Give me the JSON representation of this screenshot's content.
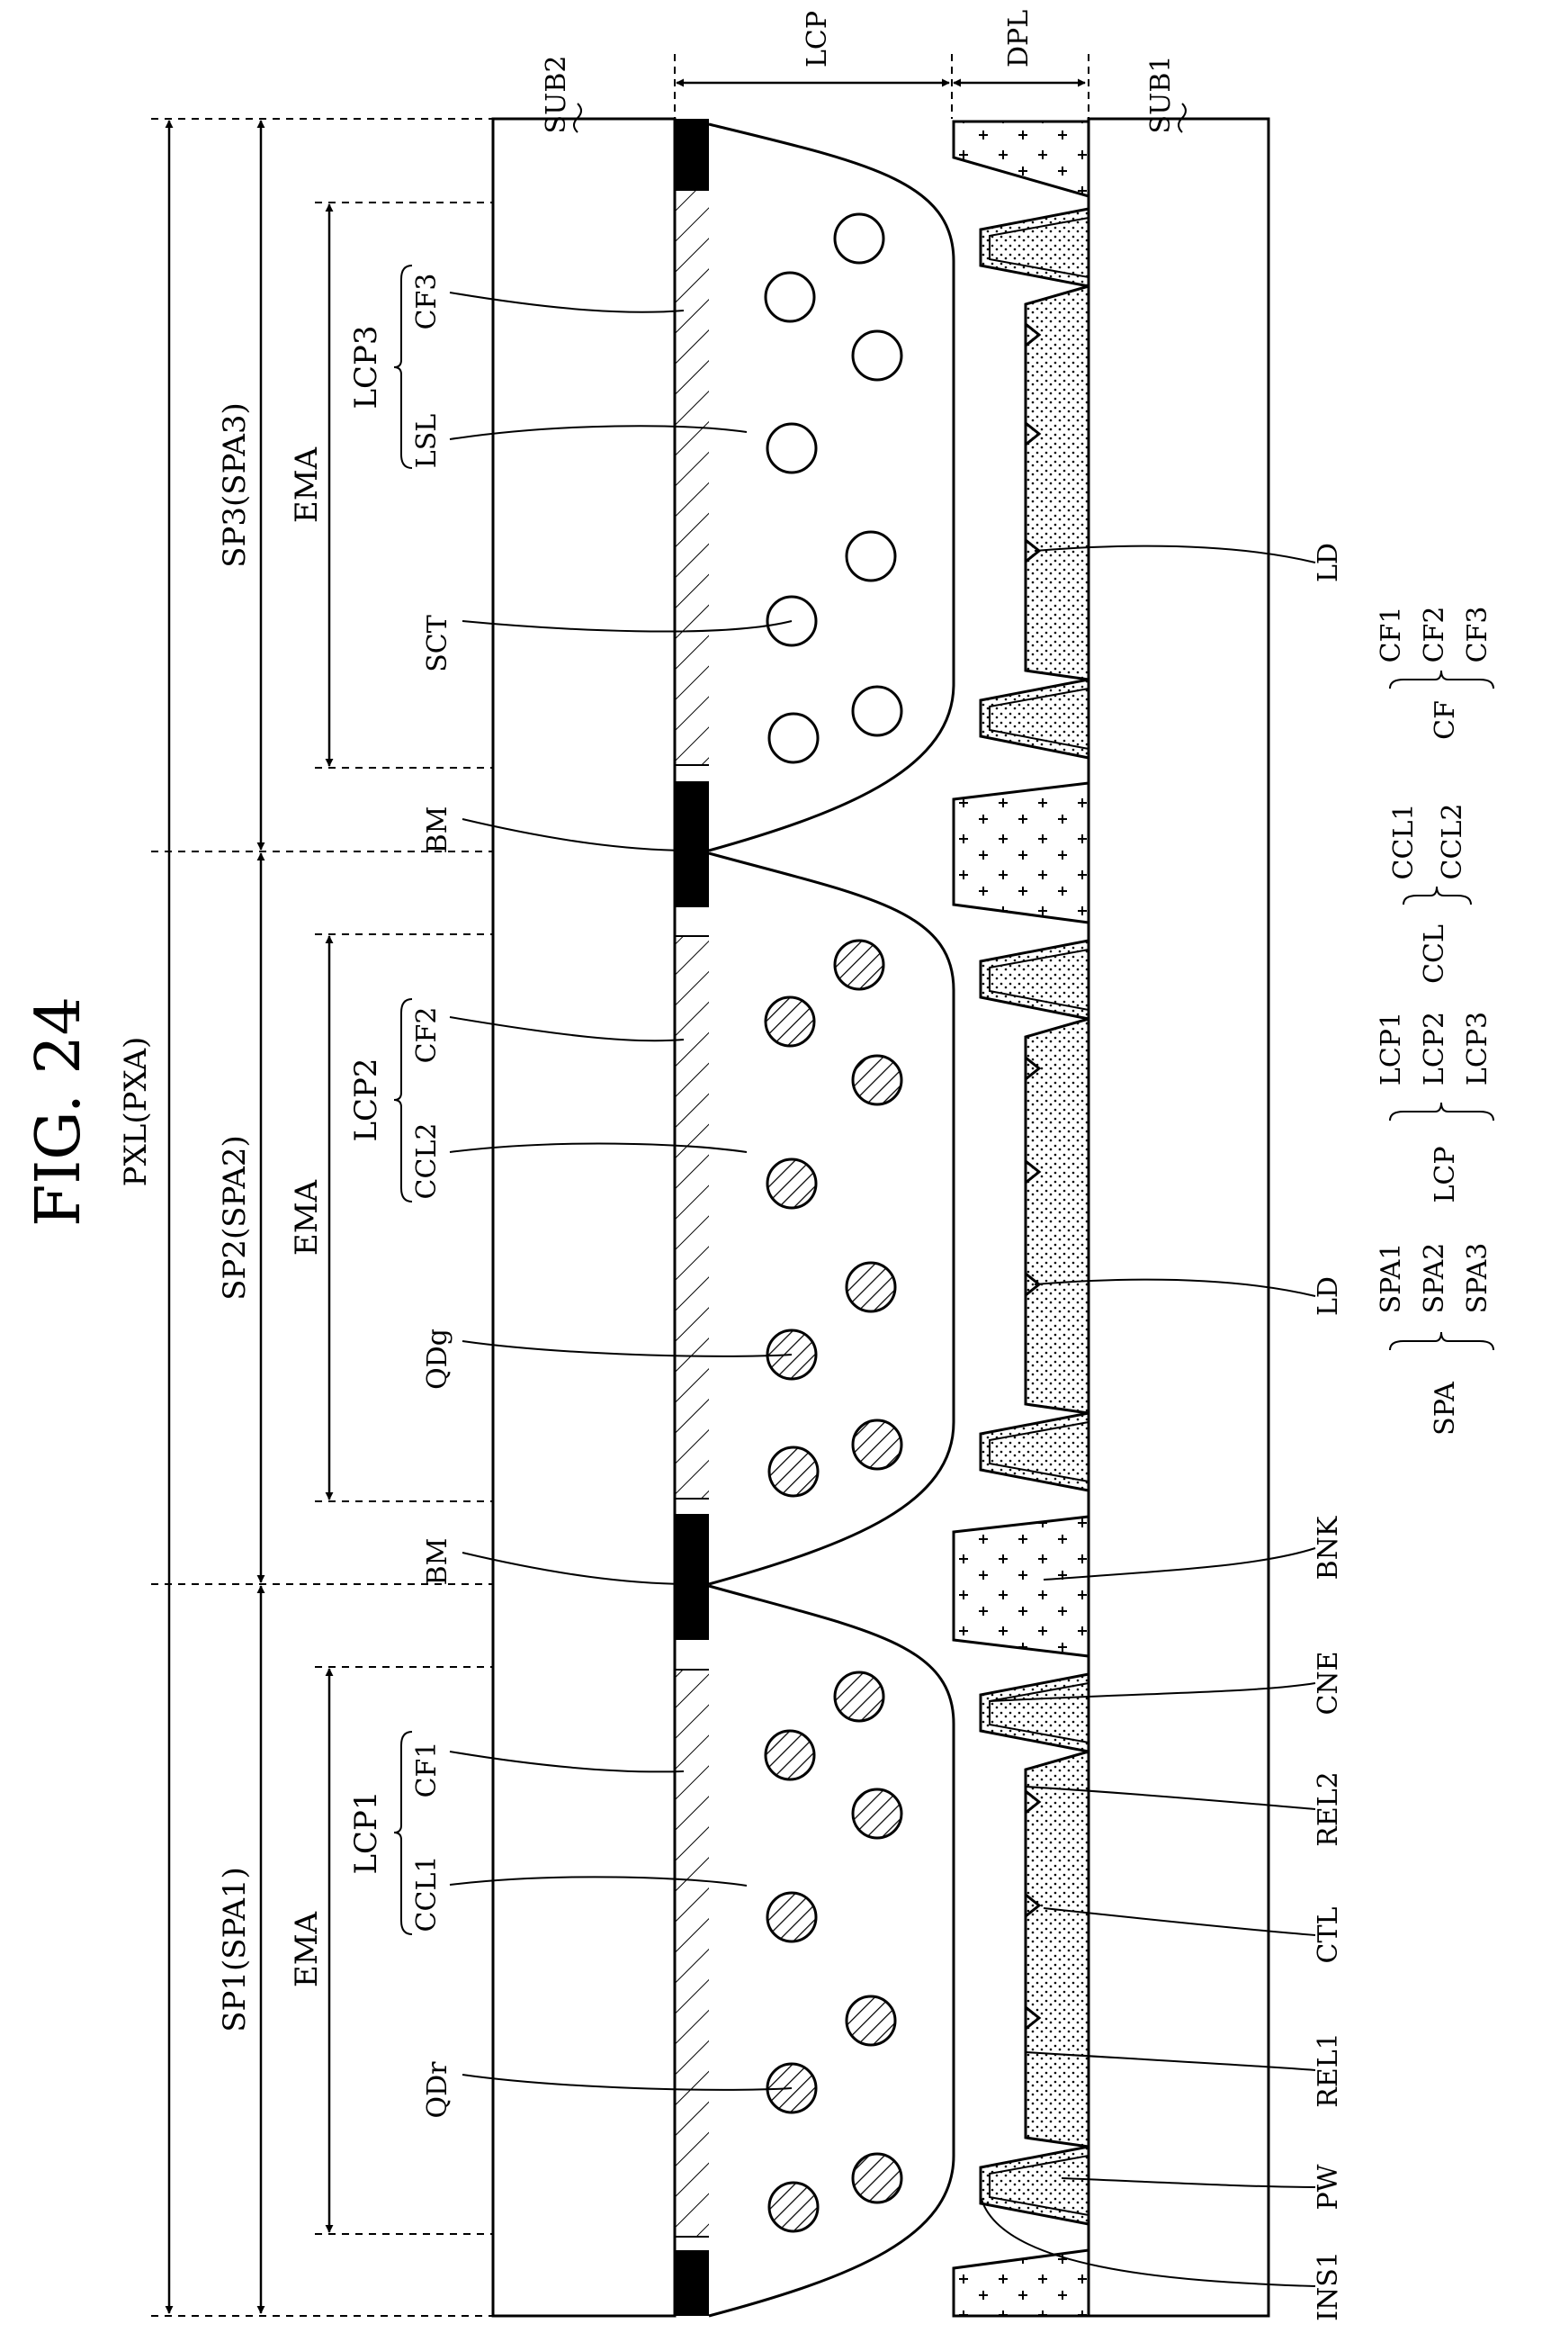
{
  "figure": {
    "title": "FIG. 24",
    "subtitle": "PXL(PXA)"
  },
  "spans": [
    {
      "id": "sp1",
      "label": "SP1(SPA1)"
    },
    {
      "id": "sp2",
      "label": "SP2(SPA2)"
    },
    {
      "id": "sp3",
      "label": "SP3(SPA3)"
    }
  ],
  "emission_areas": [
    {
      "label": "EMA"
    },
    {
      "label": "EMA"
    },
    {
      "label": "EMA"
    }
  ],
  "light_control_patterns": [
    {
      "label": "LCP1",
      "members": [
        "CCL1",
        "CF1"
      ]
    },
    {
      "label": "LCP2",
      "members": [
        "CCL2",
        "CF2"
      ]
    },
    {
      "label": "LCP3",
      "members": [
        "LSL",
        "CF3"
      ]
    }
  ],
  "layers": {
    "lcp": "LCP",
    "dpl": "DPL",
    "sub1": "SUB1",
    "sub2": "SUB2"
  },
  "particles": {
    "red": "QDr",
    "green": "QDg",
    "scatter": "SCT"
  },
  "labels": {
    "bm": "BM",
    "ld": "LD",
    "bnk": "BNK",
    "cne": "CNE",
    "rel2": "REL2",
    "ctl": "CTL",
    "rel1": "REL1",
    "pw": "PW",
    "ins1": "INS1"
  },
  "legend": [
    {
      "group": "SPA",
      "members": [
        "SPA1",
        "SPA2",
        "SPA3"
      ]
    },
    {
      "group": "LCP",
      "members": [
        "LCP1",
        "LCP2",
        "LCP3"
      ]
    },
    {
      "group": "CCL",
      "members": [
        "CCL1",
        "CCL2"
      ]
    },
    {
      "group": "CF",
      "members": [
        "CF1",
        "CF2",
        "CF3"
      ]
    }
  ],
  "colors": {
    "ink": "#000000",
    "paper": "#ffffff"
  }
}
